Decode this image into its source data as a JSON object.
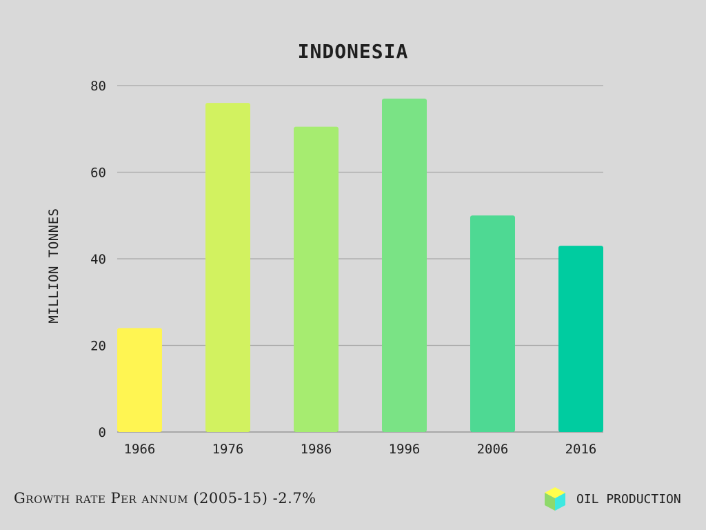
{
  "chart_data": {
    "type": "bar",
    "title": "INDONESIA",
    "xlabel": "",
    "ylabel": "MILLION TONNES",
    "categories": [
      "1966",
      "1976",
      "1986",
      "1996",
      "2006",
      "2016"
    ],
    "values": [
      24,
      76,
      70.5,
      77,
      50,
      43
    ],
    "ylim": [
      0,
      80
    ],
    "yticks": [
      "0",
      "20",
      "40",
      "60",
      "80"
    ],
    "grid": true,
    "bar_colors": [
      "#fff552",
      "#d2f260",
      "#a6ec70",
      "#7ae385",
      "#4ed993",
      "#00cca0"
    ]
  },
  "footer": {
    "growth_text": "Growth rate Per annum (2005-15) -2.7%",
    "brand_label": "OIL PRODUCTION",
    "brand_icon": "cube-icon",
    "brand_colors": [
      "#ffff4d",
      "#8ed96b",
      "#3ee8e0"
    ]
  }
}
